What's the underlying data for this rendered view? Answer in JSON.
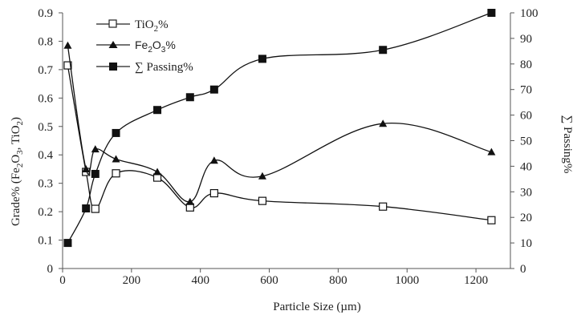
{
  "chart_data": {
    "type": "line",
    "title": "",
    "xlabel": "Particle Size (µm)",
    "ylabel_left": "Grade% (Fe2O3, TiO2)",
    "ylabel_right": "∑ Passing%",
    "xlim": [
      0,
      1300
    ],
    "ylim_left": [
      0,
      0.9
    ],
    "ylim_right": [
      0,
      100
    ],
    "x_ticks": [
      "0",
      "200",
      "400",
      "600",
      "800",
      "1000",
      "1200"
    ],
    "y_left_ticks": [
      "0",
      "0.1",
      "0.2",
      "0.3",
      "0.4",
      "0.5",
      "0.6",
      "0.7",
      "0.8",
      "0.9"
    ],
    "y_right_ticks": [
      "0",
      "10",
      "20",
      "30",
      "40",
      "50",
      "60",
      "70",
      "80",
      "90",
      "100"
    ],
    "grid": false,
    "legend_position": "top-left",
    "series": [
      {
        "name": "TiO2%",
        "axis": "left",
        "marker": "open-square",
        "x": [
          15,
          68,
          95,
          155,
          275,
          370,
          440,
          580,
          930,
          1245
        ],
        "y": [
          0.715,
          0.34,
          0.21,
          0.335,
          0.32,
          0.215,
          0.265,
          0.238,
          0.218,
          0.17
        ]
      },
      {
        "name": "Fe2O3%",
        "axis": "left",
        "marker": "filled-triangle",
        "x": [
          15,
          68,
          95,
          155,
          275,
          370,
          440,
          580,
          930,
          1245
        ],
        "y": [
          0.785,
          0.35,
          0.42,
          0.385,
          0.34,
          0.235,
          0.38,
          0.325,
          0.51,
          0.41
        ]
      },
      {
        "name": "∑ Passing%",
        "axis": "right",
        "marker": "filled-square",
        "x": [
          15,
          68,
          95,
          155,
          275,
          370,
          440,
          580,
          930,
          1245
        ],
        "y": [
          10,
          23.5,
          37,
          53,
          62,
          67,
          70,
          82,
          85.5,
          100
        ]
      }
    ]
  },
  "legend": {
    "tio2": {
      "main": "TiO",
      "sub": "2",
      "suffix": "%"
    },
    "fe2o3": {
      "main1": "Fe",
      "sub1": "2",
      "main2": "O",
      "sub2": "3",
      "suffix": "%"
    },
    "passing": {
      "text": "∑ Passing%"
    }
  },
  "ylabel_left_parts": {
    "a": "Grade% (Fe",
    "b": "2",
    "c": "O",
    "d": "3",
    "e": ", TiO",
    "f": "2",
    "g": ")"
  }
}
